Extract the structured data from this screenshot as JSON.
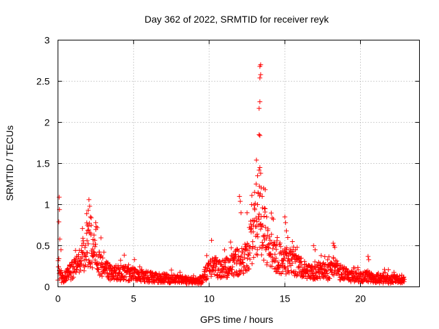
{
  "chart_data": {
    "type": "scatter",
    "title": "Day 362 of 2022, SRMTID for receiver reyk",
    "xlabel": "GPS time / hours",
    "ylabel": "SRMTID / TECUs",
    "xlim": [
      0,
      23.9
    ],
    "ylim": [
      0,
      3
    ],
    "xticks": [
      0,
      5,
      10,
      15,
      20
    ],
    "yticks": [
      0,
      0.5,
      1,
      1.5,
      2,
      2.5,
      3
    ],
    "xtick_labels": [
      "0",
      "5",
      "10",
      "15",
      "20"
    ],
    "ytick_labels": [
      "0",
      "0.5",
      "1",
      "1.5",
      "2",
      "2.5",
      "3"
    ],
    "grid": true,
    "marker": "+",
    "series": [
      {
        "name": "reyk",
        "color": "#ff0000",
        "anchors": {
          "x": [
            0.0,
            0.3,
            0.8,
            1.3,
            1.7,
            2.0,
            2.3,
            2.6,
            3.0,
            3.5,
            4.0,
            4.5,
            5.0,
            5.5,
            6.0,
            6.5,
            7.0,
            7.5,
            8.0,
            8.5,
            9.0,
            9.5,
            9.9,
            10.2,
            10.6,
            11.0,
            11.4,
            11.8,
            12.2,
            12.6,
            13.0,
            13.3,
            13.6,
            13.9,
            14.2,
            14.6,
            15.0,
            15.4,
            15.8,
            16.2,
            16.6,
            17.0,
            17.4,
            17.8,
            18.2,
            18.6,
            19.0,
            19.5,
            20.0,
            20.5,
            21.0,
            21.5,
            22.0,
            22.5,
            22.9
          ],
          "y": [
            0.18,
            0.1,
            0.18,
            0.25,
            0.4,
            0.55,
            0.45,
            0.3,
            0.22,
            0.18,
            0.17,
            0.16,
            0.15,
            0.14,
            0.12,
            0.11,
            0.11,
            0.1,
            0.09,
            0.08,
            0.08,
            0.08,
            0.2,
            0.25,
            0.22,
            0.22,
            0.26,
            0.3,
            0.32,
            0.42,
            0.7,
            0.9,
            0.65,
            0.45,
            0.4,
            0.35,
            0.32,
            0.3,
            0.25,
            0.22,
            0.18,
            0.2,
            0.2,
            0.18,
            0.25,
            0.18,
            0.15,
            0.12,
            0.12,
            0.12,
            0.1,
            0.09,
            0.09,
            0.09,
            0.1
          ]
        },
        "spikes": [
          {
            "x": 0.08,
            "y": 1.09
          },
          {
            "x": 0.1,
            "y": 0.94
          },
          {
            "x": 0.06,
            "y": 0.79
          },
          {
            "x": 0.12,
            "y": 0.58
          },
          {
            "x": 0.2,
            "y": 0.45
          },
          {
            "x": 1.9,
            "y": 0.89
          },
          {
            "x": 2.0,
            "y": 0.93
          },
          {
            "x": 2.05,
            "y": 1.06
          },
          {
            "x": 2.1,
            "y": 0.98
          },
          {
            "x": 2.15,
            "y": 0.85
          },
          {
            "x": 2.2,
            "y": 0.75
          },
          {
            "x": 2.5,
            "y": 0.78
          },
          {
            "x": 2.6,
            "y": 0.72
          },
          {
            "x": 12.0,
            "y": 1.1
          },
          {
            "x": 12.05,
            "y": 1.04
          },
          {
            "x": 12.1,
            "y": 0.9
          },
          {
            "x": 12.5,
            "y": 0.9
          },
          {
            "x": 12.8,
            "y": 1.0
          },
          {
            "x": 13.0,
            "y": 1.15
          },
          {
            "x": 13.1,
            "y": 1.25
          },
          {
            "x": 13.2,
            "y": 1.35
          },
          {
            "x": 13.3,
            "y": 1.42
          },
          {
            "x": 13.35,
            "y": 1.45
          },
          {
            "x": 13.4,
            "y": 1.38
          },
          {
            "x": 13.2,
            "y": 1.0
          },
          {
            "x": 13.5,
            "y": 1.1
          },
          {
            "x": 13.6,
            "y": 1.2
          },
          {
            "x": 13.7,
            "y": 0.95
          },
          {
            "x": 13.8,
            "y": 0.85
          },
          {
            "x": 13.3,
            "y": 1.85
          },
          {
            "x": 13.35,
            "y": 1.84
          },
          {
            "x": 13.3,
            "y": 2.17
          },
          {
            "x": 13.35,
            "y": 2.25
          },
          {
            "x": 13.35,
            "y": 2.54
          },
          {
            "x": 13.4,
            "y": 2.58
          },
          {
            "x": 13.35,
            "y": 2.68
          },
          {
            "x": 13.4,
            "y": 2.7
          },
          {
            "x": 14.5,
            "y": 0.6
          },
          {
            "x": 15.0,
            "y": 0.85
          },
          {
            "x": 15.05,
            "y": 0.78
          },
          {
            "x": 15.1,
            "y": 0.68
          },
          {
            "x": 15.2,
            "y": 0.6
          },
          {
            "x": 15.5,
            "y": 0.55
          },
          {
            "x": 15.7,
            "y": 0.45
          },
          {
            "x": 16.9,
            "y": 0.5
          },
          {
            "x": 17.0,
            "y": 0.45
          },
          {
            "x": 17.4,
            "y": 0.38
          },
          {
            "x": 18.2,
            "y": 0.53
          },
          {
            "x": 18.25,
            "y": 0.5
          },
          {
            "x": 18.3,
            "y": 0.48
          },
          {
            "x": 20.5,
            "y": 0.37
          },
          {
            "x": 20.55,
            "y": 0.33
          }
        ]
      }
    ]
  }
}
